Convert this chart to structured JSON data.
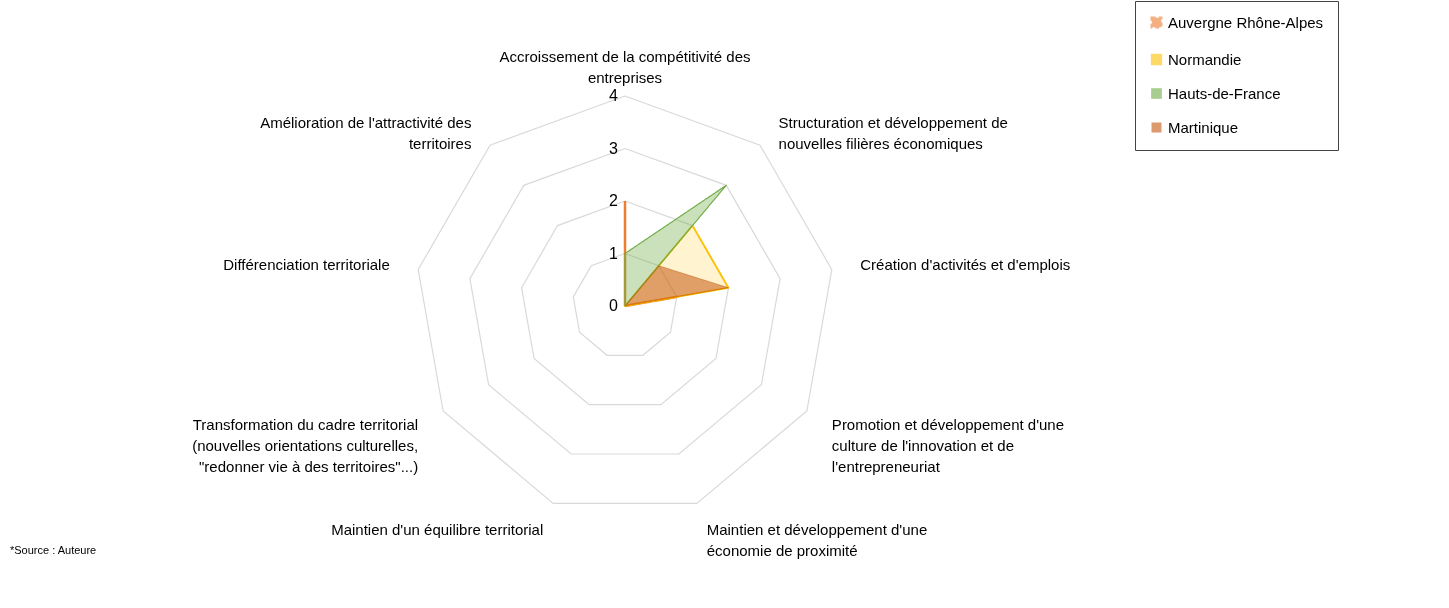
{
  "chart_data": {
    "type": "radar",
    "categories": [
      "Accroissement de la compétitivité des entreprises",
      "Structuration et développement de nouvelles filières économiques",
      "Création d'activités et d'emplois",
      "Promotion et développement d'une culture de l'innovation et de l'entrepreneuriat",
      "Maintien et développement d'une économie de proximité",
      "Maintien d'un équilibre territorial",
      "Transformation du cadre territorial (nouvelles orientations culturelles, \"redonner vie à des territoires\"...)",
      "Différenciation territoriale",
      "Amélioration de l'attractivité des territoires"
    ],
    "series": [
      {
        "name": "Auvergne Rhône-Alpes",
        "line_style": "dashed",
        "color": "#ed7d31",
        "values": [
          2,
          0,
          1,
          0,
          0,
          0,
          0,
          0,
          0
        ]
      },
      {
        "name": "Normandie",
        "color": "#ffc000",
        "values": [
          0,
          2,
          2,
          0,
          0,
          0,
          0,
          0,
          0
        ]
      },
      {
        "name": "Hauts-de-France",
        "color": "#70ad47",
        "values": [
          1,
          3,
          0,
          0,
          0,
          0,
          0,
          0,
          0
        ]
      },
      {
        "name": "Martinique",
        "color": "#c55a11",
        "values": [
          0,
          1,
          2,
          0,
          0,
          0,
          0,
          0,
          0
        ]
      }
    ],
    "ylim": [
      0,
      4
    ],
    "yticks": [
      0,
      1,
      2,
      3,
      4
    ],
    "grid": true,
    "legend": "right",
    "annotations": [
      "*Source : Auteure"
    ]
  }
}
